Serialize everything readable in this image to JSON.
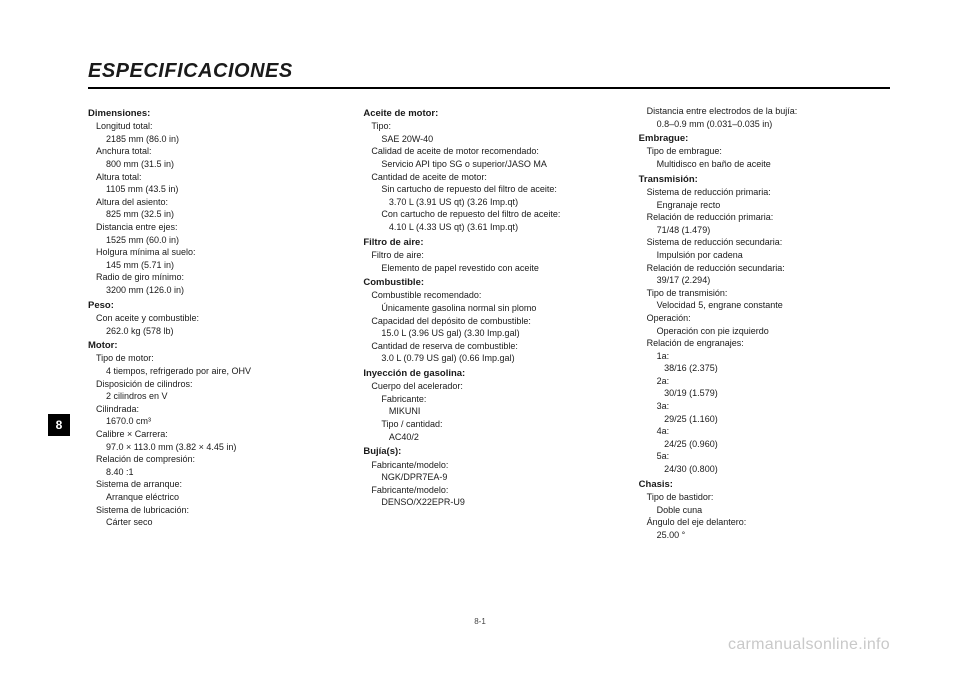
{
  "heading": "ESPECIFICACIONES",
  "side_tab": "8",
  "page_number": "8-1",
  "watermark": "carmanualsonline.info",
  "col1": [
    {
      "type": "section",
      "text": "Dimensiones:"
    },
    {
      "type": "label",
      "text": "Longitud total:"
    },
    {
      "type": "value",
      "text": "2185 mm (86.0 in)"
    },
    {
      "type": "label",
      "text": "Anchura total:"
    },
    {
      "type": "value",
      "text": "800 mm (31.5 in)"
    },
    {
      "type": "label",
      "text": "Altura total:"
    },
    {
      "type": "value",
      "text": "1105 mm (43.5 in)"
    },
    {
      "type": "label",
      "text": "Altura del asiento:"
    },
    {
      "type": "value",
      "text": "825 mm (32.5 in)"
    },
    {
      "type": "label",
      "text": "Distancia entre ejes:"
    },
    {
      "type": "value",
      "text": "1525 mm (60.0 in)"
    },
    {
      "type": "label",
      "text": "Holgura mínima al suelo:"
    },
    {
      "type": "value",
      "text": "145 mm (5.71 in)"
    },
    {
      "type": "label",
      "text": "Radio de giro mínimo:"
    },
    {
      "type": "value",
      "text": "3200 mm (126.0 in)"
    },
    {
      "type": "section",
      "text": "Peso:"
    },
    {
      "type": "label",
      "text": "Con aceite y combustible:"
    },
    {
      "type": "value",
      "text": "262.0 kg (578 lb)"
    },
    {
      "type": "section",
      "text": "Motor:"
    },
    {
      "type": "label",
      "text": "Tipo de motor:"
    },
    {
      "type": "value",
      "text": "4 tiempos, refrigerado por aire, OHV"
    },
    {
      "type": "label",
      "text": "Disposición de cilindros:"
    },
    {
      "type": "value",
      "text": "2 cilindros en V"
    },
    {
      "type": "label",
      "text": "Cilindrada:"
    },
    {
      "type": "value",
      "text": "1670.0 cm³"
    },
    {
      "type": "label",
      "text": "Calibre × Carrera:"
    },
    {
      "type": "value",
      "text": "97.0 × 113.0 mm (3.82 × 4.45 in)"
    },
    {
      "type": "label",
      "text": "Relación de compresión:"
    },
    {
      "type": "value",
      "text": "8.40 :1"
    },
    {
      "type": "label",
      "text": "Sistema de arranque:"
    },
    {
      "type": "value",
      "text": "Arranque eléctrico"
    },
    {
      "type": "label",
      "text": "Sistema de lubricación:"
    },
    {
      "type": "value",
      "text": "Cárter seco"
    }
  ],
  "col2": [
    {
      "type": "section",
      "text": "Aceite de motor:"
    },
    {
      "type": "label",
      "text": "Tipo:"
    },
    {
      "type": "value",
      "text": "SAE 20W-40"
    },
    {
      "type": "label",
      "text": "Calidad de aceite de motor recomendado:"
    },
    {
      "type": "value",
      "text": "Servicio API tipo SG o superior/JASO MA"
    },
    {
      "type": "label",
      "text": "Cantidad de aceite de motor:"
    },
    {
      "type": "value",
      "text": "Sin cartucho de repuesto del filtro de aceite:"
    },
    {
      "type": "value",
      "text": "   3.70 L (3.91 US qt) (3.26 Imp.qt)"
    },
    {
      "type": "value",
      "text": "Con cartucho de repuesto del filtro de aceite:"
    },
    {
      "type": "value",
      "text": "   4.10 L (4.33 US qt) (3.61 Imp.qt)"
    },
    {
      "type": "section",
      "text": "Filtro de aire:"
    },
    {
      "type": "label",
      "text": "Filtro de aire:"
    },
    {
      "type": "value",
      "text": "Elemento de papel revestido con aceite"
    },
    {
      "type": "section",
      "text": "Combustible:"
    },
    {
      "type": "label",
      "text": "Combustible recomendado:"
    },
    {
      "type": "value",
      "text": "Únicamente gasolina normal sin plomo"
    },
    {
      "type": "label",
      "text": "Capacidad del depósito de combustible:"
    },
    {
      "type": "value",
      "text": "15.0 L (3.96 US gal) (3.30 Imp.gal)"
    },
    {
      "type": "label",
      "text": "Cantidad de reserva de combustible:"
    },
    {
      "type": "value",
      "text": "3.0 L (0.79 US gal) (0.66 Imp.gal)"
    },
    {
      "type": "section",
      "text": "Inyección de gasolina:"
    },
    {
      "type": "label",
      "text": "Cuerpo del acelerador:"
    },
    {
      "type": "value",
      "text": "Fabricante:"
    },
    {
      "type": "value",
      "text": "   MIKUNI"
    },
    {
      "type": "value",
      "text": "Tipo / cantidad:"
    },
    {
      "type": "value",
      "text": "   AC40/2"
    },
    {
      "type": "section",
      "text": "Bujía(s):"
    },
    {
      "type": "label",
      "text": "Fabricante/modelo:"
    },
    {
      "type": "value",
      "text": "NGK/DPR7EA-9"
    },
    {
      "type": "label",
      "text": "Fabricante/modelo:"
    },
    {
      "type": "value",
      "text": "DENSO/X22EPR-U9"
    }
  ],
  "col3": [
    {
      "type": "label",
      "text": "Distancia entre electrodos de la bujía:"
    },
    {
      "type": "value",
      "text": "0.8–0.9 mm (0.031–0.035 in)"
    },
    {
      "type": "section",
      "text": "Embrague:"
    },
    {
      "type": "label",
      "text": "Tipo de embrague:"
    },
    {
      "type": "value",
      "text": "Multidisco en baño de aceite"
    },
    {
      "type": "section",
      "text": "Transmisión:"
    },
    {
      "type": "label",
      "text": "Sistema de reducción primaria:"
    },
    {
      "type": "value",
      "text": "Engranaje recto"
    },
    {
      "type": "label",
      "text": "Relación de reducción primaria:"
    },
    {
      "type": "value",
      "text": "71/48 (1.479)"
    },
    {
      "type": "label",
      "text": "Sistema de reducción secundaria:"
    },
    {
      "type": "value",
      "text": "Impulsión por cadena"
    },
    {
      "type": "label",
      "text": "Relación de reducción secundaria:"
    },
    {
      "type": "value",
      "text": "39/17 (2.294)"
    },
    {
      "type": "label",
      "text": "Tipo de transmisión:"
    },
    {
      "type": "value",
      "text": "Velocidad 5, engrane constante"
    },
    {
      "type": "label",
      "text": "Operación:"
    },
    {
      "type": "value",
      "text": "Operación con pie izquierdo"
    },
    {
      "type": "label",
      "text": "Relación de engranajes:"
    },
    {
      "type": "value",
      "text": "1a:"
    },
    {
      "type": "value",
      "text": "   38/16 (2.375)"
    },
    {
      "type": "value",
      "text": "2a:"
    },
    {
      "type": "value",
      "text": "   30/19 (1.579)"
    },
    {
      "type": "value",
      "text": "3a:"
    },
    {
      "type": "value",
      "text": "   29/25 (1.160)"
    },
    {
      "type": "value",
      "text": "4a:"
    },
    {
      "type": "value",
      "text": "   24/25 (0.960)"
    },
    {
      "type": "value",
      "text": "5a:"
    },
    {
      "type": "value",
      "text": "   24/30 (0.800)"
    },
    {
      "type": "section",
      "text": "Chasis:"
    },
    {
      "type": "label",
      "text": "Tipo de bastidor:"
    },
    {
      "type": "value",
      "text": "Doble cuna"
    },
    {
      "type": "label",
      "text": "Ángulo del eje delantero:"
    },
    {
      "type": "value",
      "text": "25.00 °"
    }
  ]
}
